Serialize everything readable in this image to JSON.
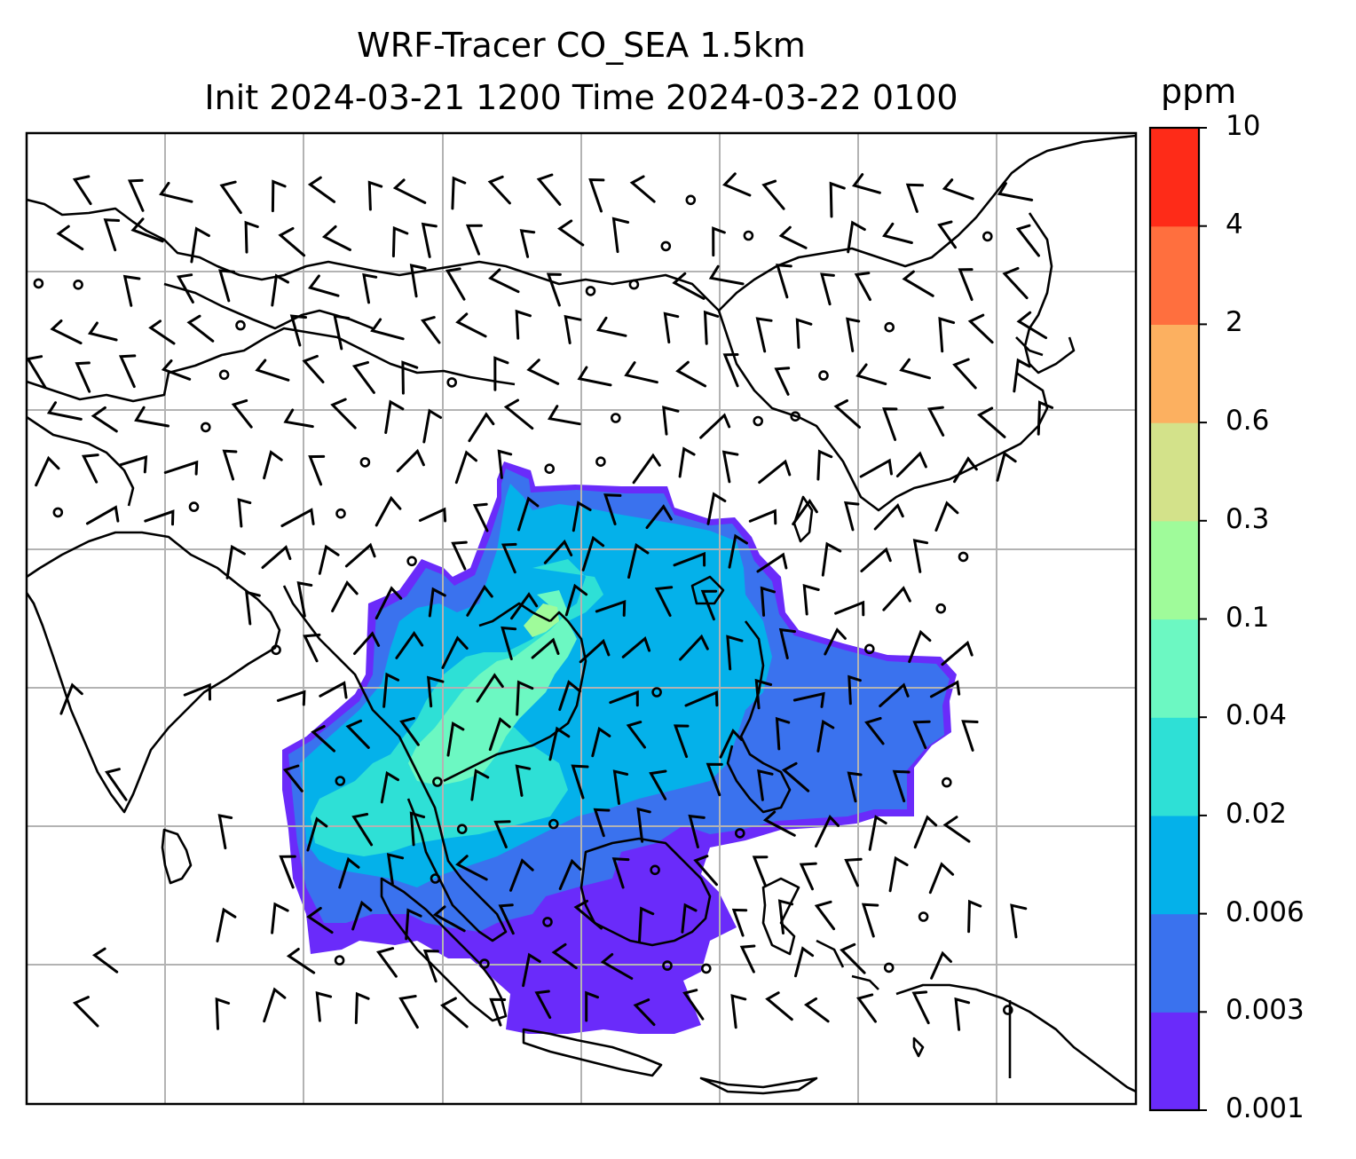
{
  "title": {
    "line1": "WRF-Tracer CO_SEA 1.5km",
    "line2": "Init 2024-03-21 1200 Time 2024-03-22 0100"
  },
  "colorbar": {
    "unit": "ppm",
    "ticks": [
      "0.001",
      "0.003",
      "0.006",
      "0.02",
      "0.04",
      "0.1",
      "0.3",
      "0.6",
      "2",
      "4",
      "10"
    ],
    "colors": [
      "#6a2bfa",
      "#3a72ee",
      "#04b1ea",
      "#2ee0d6",
      "#6cf8c2",
      "#9ffb9a",
      "#d3e28a",
      "#fcb060",
      "#ff6f3e",
      "#fe2b18"
    ]
  },
  "map": {
    "plume_colors": {
      "outer": "#6a2bfa",
      "low": "#3a72ee",
      "mid": "#04b1ea",
      "high": "#2ee0d6",
      "peak": "#6cf8c2",
      "core": "#9ffb9a"
    },
    "gridline_color": "#b3b3b3",
    "coastline_color": "#000000",
    "wind_barbs": "black"
  }
}
